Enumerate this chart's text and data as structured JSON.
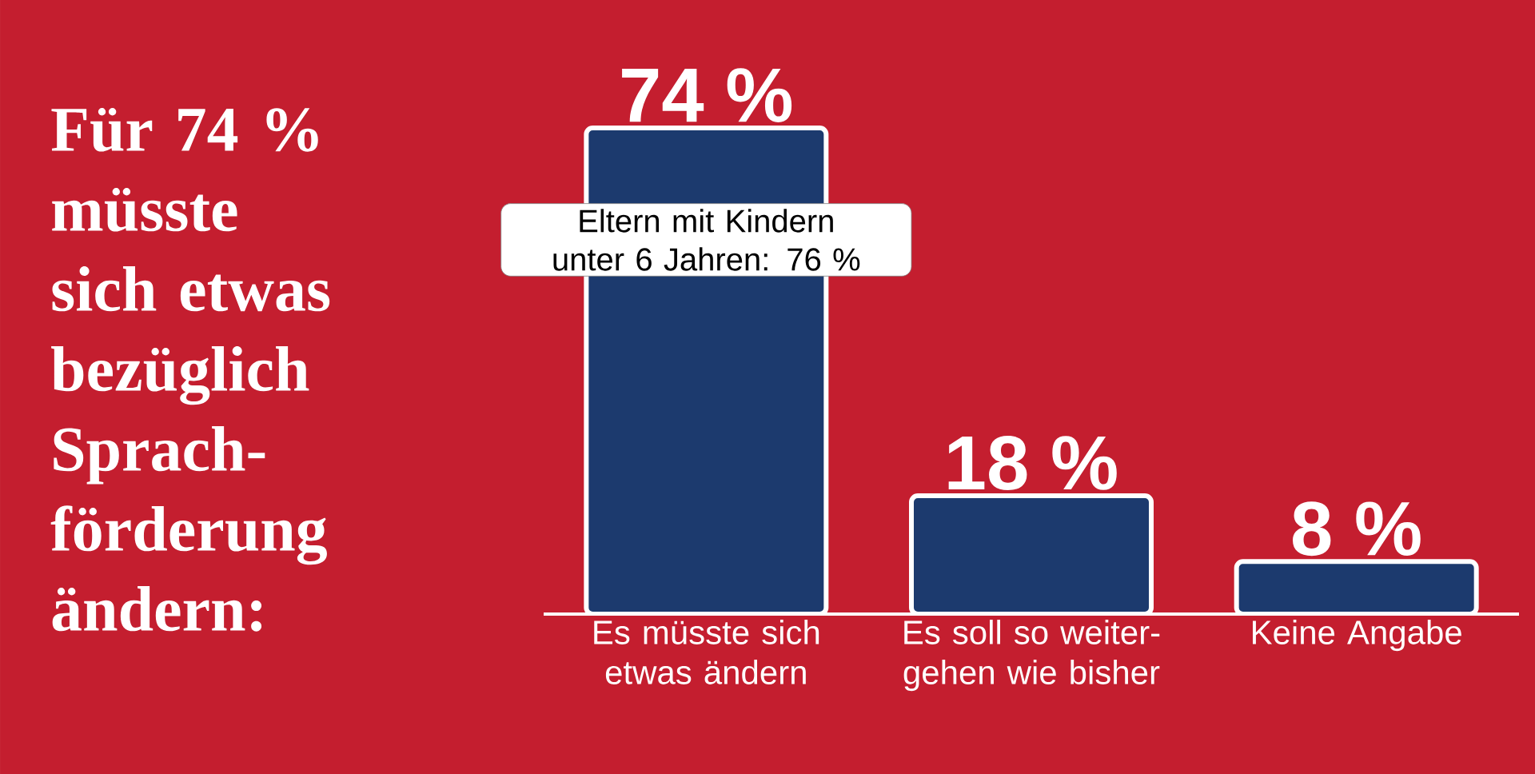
{
  "chart_data": {
    "type": "bar",
    "title": "Für 74 % müsste sich etwas bezüglich Sprach-förderung ändern:",
    "categories": [
      "Es müsste sich etwas ändern",
      "Es soll so weiter-gehen wie bisher",
      "Keine Angabe"
    ],
    "values": [
      74,
      18,
      8
    ],
    "color": "#1c3a6e",
    "value_labels": [
      "74 %",
      "18 %",
      "8 %"
    ],
    "annotations": [
      "Eltern mit Kindern unter 6 Jahren: 76 %"
    ],
    "data_labels": false
  }
}
